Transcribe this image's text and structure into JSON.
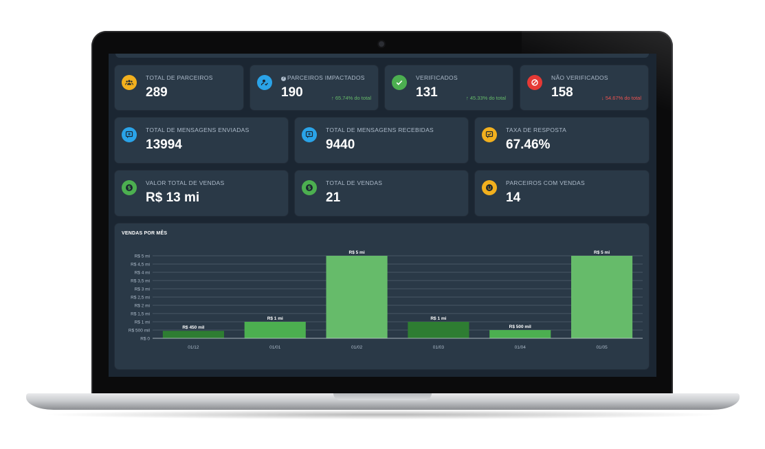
{
  "kpi_row1": [
    {
      "label": "TOTAL DE PARCEIROS",
      "value": "289",
      "icon": "partners-group-icon",
      "color": "#f2b01e"
    },
    {
      "label": "PARCEIROS IMPACTADOS",
      "value": "190",
      "icon": "user-check-icon",
      "color": "#2aa3e8",
      "help": "?",
      "trend": "↑ 65.74% do total",
      "trend_dir": "up"
    },
    {
      "label": "VERIFICADOS",
      "value": "131",
      "icon": "check-icon",
      "color": "#4caf50",
      "trend": "↑ 45.33% do total",
      "trend_dir": "up"
    },
    {
      "label": "NÃO VERIFICADOS",
      "value": "158",
      "icon": "blocked-icon",
      "color": "#e53935",
      "trend": "↓ 54.67% do total",
      "trend_dir": "down"
    }
  ],
  "kpi_row2": [
    {
      "label": "TOTAL DE MENSAGENS ENVIADAS",
      "value": "13994",
      "icon": "message-sent-icon",
      "color": "#2aa3e8"
    },
    {
      "label": "TOTAL DE MENSAGENS RECEBIDAS",
      "value": "9440",
      "icon": "message-received-icon",
      "color": "#2aa3e8"
    },
    {
      "label": "TAXA DE RESPOSTA",
      "value": "67.46%",
      "icon": "response-rate-icon",
      "color": "#f2b01e"
    }
  ],
  "kpi_row3": [
    {
      "label": "VALOR TOTAL DE VENDAS",
      "value": "R$ 13 mi",
      "icon": "dollar-icon",
      "color": "#4caf50"
    },
    {
      "label": "TOTAL DE VENDAS",
      "value": "21",
      "icon": "dollar-icon",
      "color": "#4caf50"
    },
    {
      "label": "PARCEIROS COM VENDAS",
      "value": "14",
      "icon": "smiley-icon",
      "color": "#f2b01e"
    }
  ],
  "chart_title": "VENDAS POR MÊS",
  "chart_data": {
    "type": "bar",
    "title": "VENDAS POR MÊS",
    "categories": [
      "01/12",
      "01/01",
      "01/02",
      "01/03",
      "01/04",
      "01/05"
    ],
    "values": [
      450000,
      1000000,
      5000000,
      1000000,
      500000,
      5000000
    ],
    "data_labels": [
      "R$ 450 mil",
      "R$ 1 mi",
      "R$ 5 mi",
      "R$ 1 mi",
      "R$ 500 mil",
      "R$ 5 mi"
    ],
    "bar_colors": [
      "#2e7d32",
      "#4caf50",
      "#66bb6a",
      "#2e7d32",
      "#4caf50",
      "#66bb6a"
    ],
    "ylim": [
      0,
      5000000
    ],
    "yticks": [
      0,
      500000,
      1000000,
      1500000,
      2000000,
      2500000,
      3000000,
      3500000,
      4000000,
      4500000,
      5000000
    ],
    "ytick_labels": [
      "R$ 0",
      "R$ 500 mil",
      "R$ 1 mi",
      "R$ 1,5 mi",
      "R$ 2 mi",
      "R$ 2,5 mi",
      "R$ 3 mi",
      "R$ 3,5 mi",
      "R$ 4 mi",
      "R$ 4,5 mi",
      "R$ 5 mi"
    ],
    "grid": true,
    "legend": "none"
  }
}
